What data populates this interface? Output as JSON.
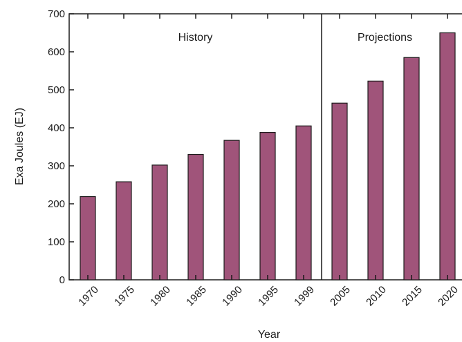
{
  "chart_data": {
    "type": "bar",
    "title": "",
    "xlabel": "Year",
    "ylabel": "Exa Joules (EJ)",
    "ylim": [
      0,
      700
    ],
    "yticks": [
      0,
      100,
      200,
      300,
      400,
      500,
      600,
      700
    ],
    "grid": false,
    "categories": [
      "1970",
      "1975",
      "1980",
      "1985",
      "1990",
      "1995",
      "1999",
      "2005",
      "2010",
      "2015",
      "2020"
    ],
    "values": [
      219,
      258,
      302,
      330,
      367,
      388,
      405,
      465,
      523,
      585,
      650
    ],
    "bar_color": "#a0547a",
    "regions": [
      {
        "label": "History",
        "from": "1970",
        "to": "1999"
      },
      {
        "label": "Projections",
        "from": "2005",
        "to": "2020"
      }
    ]
  }
}
